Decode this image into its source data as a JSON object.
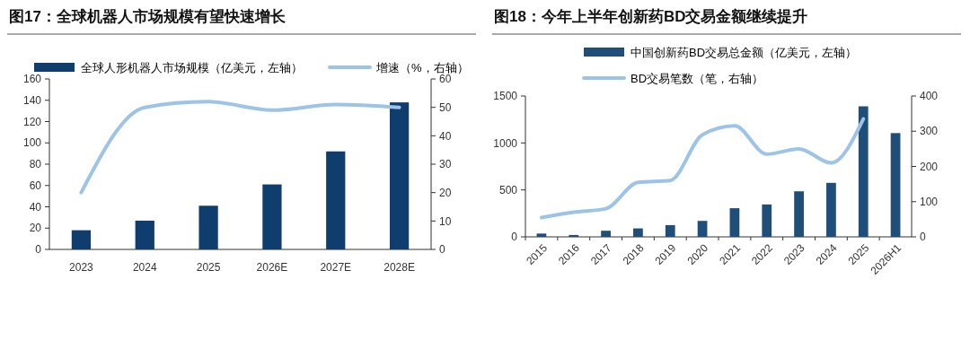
{
  "chart_data": [
    {
      "type": "bar",
      "title": "图17：全球机器人市场规模有望快速增长",
      "categories": [
        "2023",
        "2024",
        "2025",
        "2026E",
        "2027E",
        "2028E"
      ],
      "series": [
        {
          "name": "全球人形机器人市场规模（亿美元，左轴）",
          "color": "#0f3d6e",
          "values": [
            18,
            27,
            41,
            61,
            92,
            138
          ]
        },
        {
          "name": "增速（%，右轴）",
          "type": "line",
          "axis": "y2",
          "color": "#9dc3e6",
          "values": [
            20,
            50,
            52,
            49,
            51,
            50
          ]
        }
      ],
      "ylim": [
        0,
        160
      ],
      "yticks": [
        0,
        20,
        40,
        60,
        80,
        100,
        120,
        140,
        160
      ],
      "y2lim": [
        0,
        60
      ],
      "y2ticks": [
        0,
        10,
        20,
        30,
        40,
        50,
        60
      ],
      "legend": "top",
      "marker": "none",
      "grid": false
    },
    {
      "type": "bar",
      "title": "图18：今年上半年创新药BD交易金额继续提升",
      "categories": [
        "2015",
        "2016",
        "2017",
        "2018",
        "2019",
        "2020",
        "2021",
        "2022",
        "2023",
        "2024",
        "2025",
        "2026H1"
      ],
      "series": [
        {
          "name": "中国创新药BD交易总金额（亿美元，左轴）",
          "color": "#1f4e79",
          "values": [
            35,
            20,
            65,
            90,
            125,
            170,
            305,
            345,
            485,
            575,
            1390,
            1105
          ]
        },
        {
          "name": "BD交易笔数（笔，右轴）",
          "type": "line",
          "axis": "y2",
          "color": "#9dc3e6",
          "values": [
            55,
            70,
            80,
            155,
            160,
            290,
            315,
            235,
            250,
            210,
            335,
            null
          ]
        }
      ],
      "ylim": [
        0,
        1500
      ],
      "yticks": [
        0,
        500,
        1000,
        1500
      ],
      "y2lim": [
        0,
        400
      ],
      "y2ticks": [
        0,
        100,
        200,
        300,
        400
      ],
      "legend": "top",
      "marker": "none",
      "grid": false
    }
  ]
}
